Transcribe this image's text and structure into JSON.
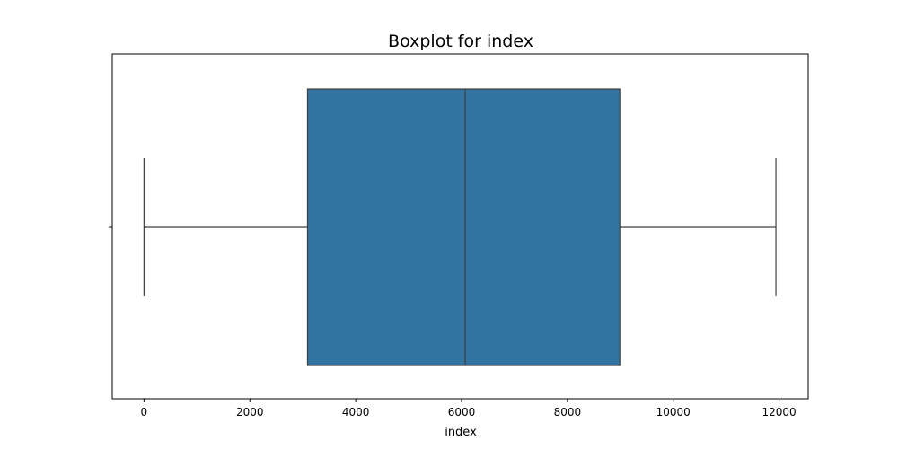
{
  "chart_data": {
    "type": "box",
    "title": "Boxplot for index",
    "xlabel": "index",
    "ylabel": "",
    "orientation": "horizontal",
    "xlim": [
      -600,
      12550
    ],
    "xticks": [
      0,
      2000,
      4000,
      6000,
      8000,
      10000,
      12000
    ],
    "xtick_labels": [
      "0",
      "2000",
      "4000",
      "6000",
      "8000",
      "10000",
      "12000"
    ],
    "grid": false,
    "box": {
      "whisker_low": 0,
      "q1": 3090,
      "median": 6070,
      "q3": 8990,
      "whisker_high": 11940,
      "color": "#3274a1",
      "edge_color": "#3f3f3f"
    }
  }
}
